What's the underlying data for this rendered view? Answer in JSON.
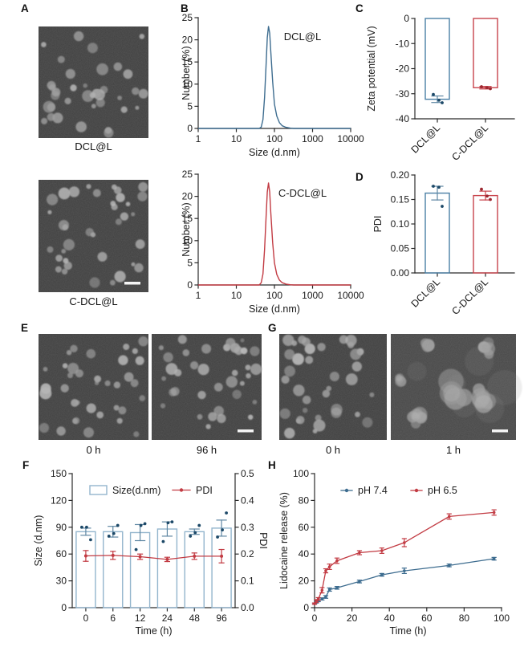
{
  "palette": {
    "blue": "#3d6c8f",
    "red": "#c23b43",
    "light_blue": "#93b5cd",
    "dark_blue_dot": "#1c4867",
    "dark_red_dot": "#9c2730",
    "axis": "#2b2b2b"
  },
  "panels": {
    "A": {
      "letter": "A",
      "images": [
        {
          "caption": "DCL@L",
          "variant": "dispersed",
          "scalebar": false
        },
        {
          "caption": "C-DCL@L",
          "variant": "dispersed",
          "scalebar": true
        }
      ]
    },
    "B": {
      "letter": "B"
    },
    "C": {
      "letter": "C"
    },
    "D": {
      "letter": "D"
    },
    "E": {
      "letter": "E",
      "images": [
        {
          "caption": "0 h",
          "variant": "dispersed",
          "scalebar": false
        },
        {
          "caption": "96 h",
          "variant": "dispersed",
          "scalebar": true
        }
      ]
    },
    "F": {
      "letter": "F"
    },
    "G": {
      "letter": "G",
      "images": [
        {
          "caption": "0 h",
          "variant": "dispersed",
          "scalebar": false
        },
        {
          "caption": "1 h",
          "variant": "aggregated",
          "scalebar": true
        }
      ]
    },
    "H": {
      "letter": "H"
    }
  },
  "chart_data": [
    {
      "id": "B1",
      "type": "line",
      "annotation": "DCL@L",
      "xlabel": "Size (d.nm)",
      "ylabel": "Number (%)",
      "xscale": "log",
      "xlim": [
        1,
        10000
      ],
      "ylim": [
        0,
        25
      ],
      "xticks": [
        1,
        10,
        100,
        1000,
        10000
      ],
      "xtick_labels": [
        "1",
        "10",
        "100",
        "1000",
        "10000"
      ],
      "yticks": [
        0,
        5,
        10,
        15,
        20,
        25
      ],
      "color": "#3d6c8f",
      "x": [
        1,
        40,
        45,
        50,
        55,
        60,
        65,
        70,
        75,
        80,
        90,
        100,
        115,
        135,
        160,
        200,
        260,
        320,
        10000
      ],
      "y": [
        0,
        0,
        0.3,
        2,
        7,
        14,
        20.5,
        23,
        21.5,
        17.5,
        10.5,
        5.5,
        2.8,
        1.3,
        0.6,
        0.25,
        0.08,
        0,
        0
      ]
    },
    {
      "id": "B2",
      "type": "line",
      "annotation": "C-DCL@L",
      "xlabel": "Size (d.nm)",
      "ylabel": "Number (%)",
      "xscale": "log",
      "xlim": [
        1,
        10000
      ],
      "ylim": [
        0,
        25
      ],
      "xticks": [
        1,
        10,
        100,
        1000,
        10000
      ],
      "xtick_labels": [
        "1",
        "10",
        "100",
        "1000",
        "10000"
      ],
      "yticks": [
        0,
        5,
        10,
        15,
        20,
        25
      ],
      "color": "#c23b43",
      "x": [
        1,
        40,
        45,
        50,
        55,
        60,
        65,
        70,
        75,
        80,
        90,
        100,
        115,
        135,
        160,
        200,
        260,
        320,
        10000
      ],
      "y": [
        0,
        0,
        0.5,
        2.5,
        8,
        15,
        21,
        23,
        21,
        16.5,
        9.5,
        5,
        2.4,
        1.1,
        0.5,
        0.2,
        0.05,
        0,
        0
      ]
    },
    {
      "id": "C",
      "type": "bar",
      "ylabel": "Zeta potential (mV)",
      "categories": [
        "DCL@L",
        "C-DCL@L"
      ],
      "values": [
        -32.2,
        -27.6
      ],
      "errors": [
        1.3,
        0.5
      ],
      "points": [
        [
          -30.3,
          -32.6,
          -33.6
        ],
        [
          -27.2,
          -27.6,
          -28.0
        ]
      ],
      "colors": [
        "#4a7fa5",
        "#c8434b"
      ],
      "dot_colors": [
        "#1c4867",
        "#9c2730"
      ],
      "err_colors": [
        "#5f87a3",
        "#c8434b"
      ],
      "ylim": [
        -40,
        0
      ],
      "ytick_values": [
        0,
        -10,
        -20,
        -30,
        -40
      ],
      "ytick_labels": [
        "0",
        "-10",
        "-20",
        "-30",
        "-40"
      ]
    },
    {
      "id": "D",
      "type": "bar",
      "ylabel": "PDI",
      "categories": [
        "DCL@L",
        "C-DCL@L"
      ],
      "values": [
        0.163,
        0.158
      ],
      "errors": [
        0.014,
        0.009
      ],
      "points": [
        [
          0.177,
          0.175,
          0.136
        ],
        [
          0.171,
          0.157,
          0.15
        ]
      ],
      "colors": [
        "#4a7fa5",
        "#c8434b"
      ],
      "dot_colors": [
        "#1c4867",
        "#9c2730"
      ],
      "err_colors": [
        "#5f87a3",
        "#c8434b"
      ],
      "ylim": [
        0,
        0.2
      ],
      "ytick_values": [
        0,
        0.05,
        0.1,
        0.15,
        0.2
      ],
      "ytick_labels": [
        "0.00",
        "0.05",
        "0.10",
        "0.15",
        "0.20"
      ]
    },
    {
      "id": "F",
      "type": "bar+line",
      "xlabel": "Time (h)",
      "categories": [
        "0",
        "6",
        "12",
        "24",
        "48",
        "96"
      ],
      "legend": [
        "Size(d.nm)",
        "PDI"
      ],
      "left_axis": {
        "label": "Size (d.nm)",
        "lim": [
          0,
          150
        ],
        "tick_values": [
          0,
          30,
          60,
          90,
          120,
          150
        ],
        "tick_labels": [
          "0",
          "30",
          "60",
          "90",
          "120",
          "150"
        ]
      },
      "right_axis": {
        "label": "PDI",
        "lim": [
          0,
          0.5
        ],
        "tick_values": [
          0,
          0.1,
          0.2,
          0.3,
          0.4,
          0.5
        ],
        "tick_labels": [
          "0.0",
          "0.1",
          "0.2",
          "0.3",
          "0.4",
          "0.5"
        ]
      },
      "size_values": [
        85,
        85,
        84,
        88,
        85,
        89
      ],
      "size_errors": [
        4,
        6,
        9,
        8,
        3,
        9
      ],
      "size_points": [
        [
          90,
          90,
          76
        ],
        [
          80,
          83,
          92
        ],
        [
          65,
          92,
          94
        ],
        [
          74,
          95,
          96
        ],
        [
          80,
          84,
          92
        ],
        [
          79,
          87,
          106
        ]
      ],
      "pdi_values": [
        0.193,
        0.195,
        0.19,
        0.18,
        0.192,
        0.192
      ],
      "pdi_errors": [
        0.02,
        0.015,
        0.01,
        0.008,
        0.012,
        0.025
      ],
      "bar_color": "#93b5cd",
      "dot_color": "#1c4867",
      "err_color": "#5f87a3",
      "line_color": "#c23b43"
    },
    {
      "id": "H",
      "type": "line",
      "xlabel": "Time (h)",
      "ylabel": "Lidocaine release (%)",
      "xlim": [
        0,
        100
      ],
      "ylim": [
        0,
        100
      ],
      "xticks": [
        0,
        20,
        40,
        60,
        80,
        100
      ],
      "yticks": [
        0,
        20,
        40,
        60,
        80,
        100
      ],
      "series": [
        {
          "name": "pH 7.4",
          "color": "#3d6c8f",
          "x": [
            0,
            1,
            2,
            4,
            6,
            8,
            12,
            24,
            36,
            48,
            72,
            96
          ],
          "y": [
            3,
            4,
            5,
            6.5,
            8,
            13.5,
            14.8,
            19.5,
            24.5,
            27.5,
            31.5,
            36.5
          ],
          "err": [
            0.5,
            0.5,
            0.5,
            0.8,
            1,
            1.2,
            1,
            1,
            1,
            2,
            1,
            1
          ]
        },
        {
          "name": "pH 6.5",
          "color": "#c23b43",
          "x": [
            0,
            1,
            2,
            4,
            6,
            8,
            12,
            24,
            36,
            48,
            72,
            96
          ],
          "y": [
            3,
            5,
            6.5,
            13,
            27.5,
            30.5,
            35,
            41,
            42.5,
            48.5,
            68,
            71
          ],
          "err": [
            0.5,
            1,
            1,
            2,
            1.5,
            2,
            2,
            1.5,
            2,
            3,
            2,
            2
          ]
        }
      ]
    }
  ]
}
